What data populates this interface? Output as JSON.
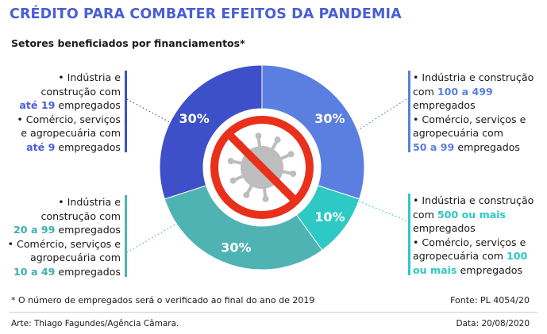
{
  "header": {
    "title": "CRÉDITO PARA COMBATER EFEITOS DA PANDEMIA",
    "subtitle": "Setores beneficiados por financiamentos*"
  },
  "colors": {
    "title": "#4a5ed4",
    "blue_dark": "#3e50c9",
    "blue_light": "#5a7fe0",
    "teal": "#4fb3b3",
    "cyan": "#2ec9c4",
    "no_sign": "#e8301b",
    "virus": "#bdbdbd"
  },
  "chart_data": {
    "type": "pie",
    "donut": true,
    "slices": [
      {
        "label": "30%",
        "value": 30
      },
      {
        "label": "10%",
        "value": 10
      },
      {
        "label": "30%",
        "value": 30
      },
      {
        "label": "30%",
        "value": 30
      }
    ]
  },
  "blocks": {
    "top_left": {
      "l1": "• Indústria e",
      "l2": "construção com",
      "l3_em": "até 19",
      "l3_rest": " empregados",
      "l4": "• Comércio, serviços",
      "l5": "e agropecuária com",
      "l6_em": "até 9",
      "l6_rest": " empregados"
    },
    "top_right": {
      "l1": "• Indústria e construção",
      "l2_pre": "com ",
      "l2_em": "100 a 499",
      "l3": "empregados",
      "l4": "• Comércio, serviços e",
      "l5": "agropecuária com",
      "l6_em": "50 a 99",
      "l6_rest": " empregados"
    },
    "bottom_left": {
      "l1": "• Indústria e",
      "l2": "construção com",
      "l3_em": "20 a 99",
      "l3_rest": " empregados",
      "l4": "• Comércio, serviços e",
      "l5": "agropecuária com",
      "l6_em": "10 a 49",
      "l6_rest": " empregados"
    },
    "bottom_right": {
      "l1": "• Indústria e construção",
      "l2_pre": "com ",
      "l2_em": "500 ou mais",
      "l3": "empregados",
      "l4": "• Comércio, serviços e",
      "l5_pre": "agropecuária com ",
      "l5_em": "100",
      "l6_em": "ou mais",
      "l6_rest": " empregados"
    }
  },
  "footer": {
    "note": "* O número de empregados será o verificado ao final do ano de 2019",
    "source": "Fonte: PL 4054/20",
    "credit": "Arte: Thiago Fagundes/Agência Câmara.",
    "date": "Data: 20/08/2020"
  }
}
